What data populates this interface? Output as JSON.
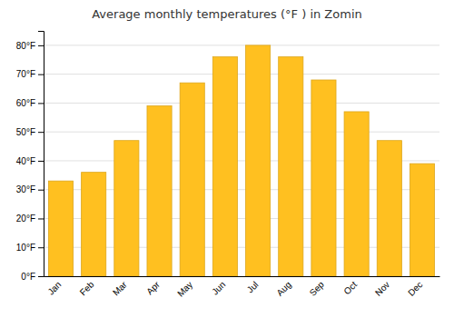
{
  "chart_data": {
    "type": "bar",
    "title": "Average monthly temperatures (°F ) in Zomin",
    "categories": [
      "Jan",
      "Feb",
      "Mar",
      "Apr",
      "May",
      "Jun",
      "Jul",
      "Aug",
      "Sep",
      "Oct",
      "Nov",
      "Dec"
    ],
    "values": [
      33,
      36,
      47,
      59,
      67,
      76,
      80,
      76,
      68,
      57,
      47,
      39
    ],
    "color": "#FFC020",
    "ylim": [
      0,
      85
    ],
    "yticks": [
      {
        "value": 0,
        "label": "0°F"
      },
      {
        "value": 10,
        "label": "10°F"
      },
      {
        "value": 20,
        "label": "20°F"
      },
      {
        "value": 30,
        "label": "30°F"
      },
      {
        "value": 40,
        "label": "40°F"
      },
      {
        "value": 50,
        "label": "50°F"
      },
      {
        "value": 60,
        "label": "60°F"
      },
      {
        "value": 70,
        "label": "70°F"
      },
      {
        "value": 80,
        "label": "80°F"
      }
    ],
    "grid": true
  }
}
